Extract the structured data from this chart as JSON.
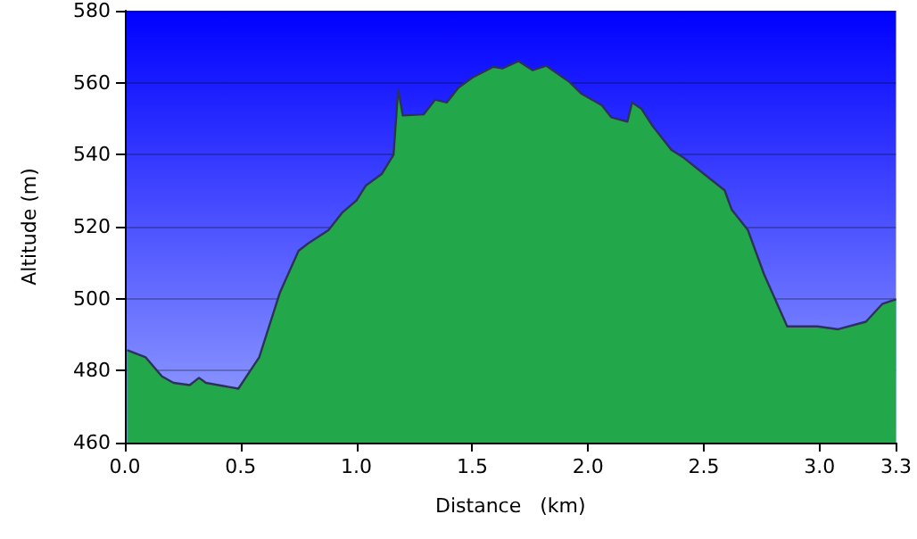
{
  "chart_data": {
    "type": "area",
    "xlabel": "Distance   (km)",
    "ylabel": "Altitude (m)",
    "x": [
      0.01,
      0.09,
      0.16,
      0.21,
      0.28,
      0.32,
      0.35,
      0.49,
      0.58,
      0.67,
      0.75,
      0.79,
      0.88,
      0.94,
      1.0,
      1.04,
      1.11,
      1.16,
      1.18,
      1.2,
      1.29,
      1.34,
      1.39,
      1.44,
      1.5,
      1.59,
      1.63,
      1.7,
      1.76,
      1.82,
      1.92,
      1.97,
      2.06,
      2.1,
      2.17,
      2.19,
      2.23,
      2.28,
      2.36,
      2.41,
      2.5,
      2.59,
      2.62,
      2.69,
      2.76,
      2.86,
      2.99,
      3.08,
      3.2,
      3.27,
      3.33
    ],
    "series": [
      {
        "color": "#22a84a",
        "values": [
          485.7,
          483.7,
          478.4,
          476.6,
          476,
          478,
          476.6,
          475,
          483.7,
          501.8,
          513.3,
          515.3,
          519.1,
          524,
          527.3,
          531.4,
          534.7,
          540,
          558.1,
          550.9,
          551.2,
          555.3,
          554.5,
          558.6,
          561.4,
          564.4,
          564,
          566,
          563.5,
          564.7,
          560.2,
          557,
          553.7,
          550.4,
          549.2,
          554.5,
          552.8,
          547.9,
          541.3,
          539.3,
          534.7,
          530.1,
          524.8,
          519.1,
          506.8,
          492.3,
          492.3,
          491.5,
          493.6,
          498.5,
          499.8
        ]
      }
    ],
    "xlim": [
      0,
      3.33
    ],
    "xticks": [
      {
        "value": 0,
        "label": "0.0"
      },
      {
        "value": 0.5,
        "label": "0.5"
      },
      {
        "value": 1,
        "label": "1.0"
      },
      {
        "value": 1.5,
        "label": "1.5"
      },
      {
        "value": 2,
        "label": "2.0"
      },
      {
        "value": 2.5,
        "label": "2.5"
      },
      {
        "value": 3,
        "label": "3.0"
      },
      {
        "value": 3.33,
        "label": "3.3"
      }
    ],
    "ylim": [
      460,
      580
    ],
    "yticks": [
      460,
      480,
      500,
      520,
      540,
      560,
      580
    ],
    "grid": "y",
    "marker": "none"
  }
}
